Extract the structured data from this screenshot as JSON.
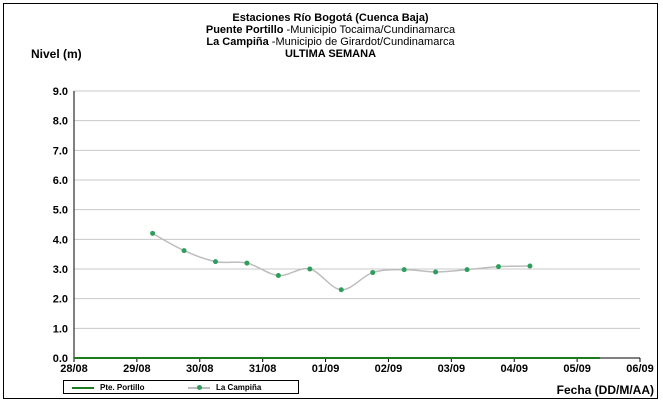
{
  "chart_data": {
    "type": "line",
    "title_lines": [
      {
        "bold": "Estaciones Río Bogotá (Cuenca Baja)",
        "normal": ""
      },
      {
        "bold": "Puente Portillo",
        "normal": " -Municipio Tocaima/Cundinamarca"
      },
      {
        "bold": "La Campiña",
        "normal": " -Municipio de Girardot/Cundinamarca"
      },
      {
        "bold": "ULTIMA SEMANA",
        "normal": ""
      }
    ],
    "ylabel": "Nivel (m)",
    "xlabel": "Fecha (DD/M/AA)",
    "ylim": [
      0,
      9
    ],
    "yticks": [
      "0.0",
      "1.0",
      "2.0",
      "3.0",
      "4.0",
      "5.0",
      "6.0",
      "7.0",
      "8.0",
      "9.0"
    ],
    "xcategories": [
      "28/08",
      "29/08",
      "30/08",
      "31/08",
      "01/09",
      "02/09",
      "03/09",
      "04/09",
      "05/09",
      "06/09"
    ],
    "grid": true,
    "legend_position": "bottom-left",
    "series": [
      {
        "name": "Pte. Portillo",
        "color": "#1e7a1e",
        "x": [],
        "y": []
      },
      {
        "name": "La Campiña",
        "color": "#2e9e5e",
        "line_color": "#bdbdbd",
        "x": [
          1.25,
          1.75,
          2.25,
          2.75,
          3.25,
          3.75,
          4.25,
          4.75,
          5.25,
          5.75,
          6.25,
          6.75,
          7.25
        ],
        "y": [
          4.2,
          3.62,
          3.25,
          3.2,
          2.78,
          3.0,
          2.3,
          2.88,
          2.98,
          2.9,
          2.98,
          3.08,
          3.1
        ]
      }
    ]
  }
}
